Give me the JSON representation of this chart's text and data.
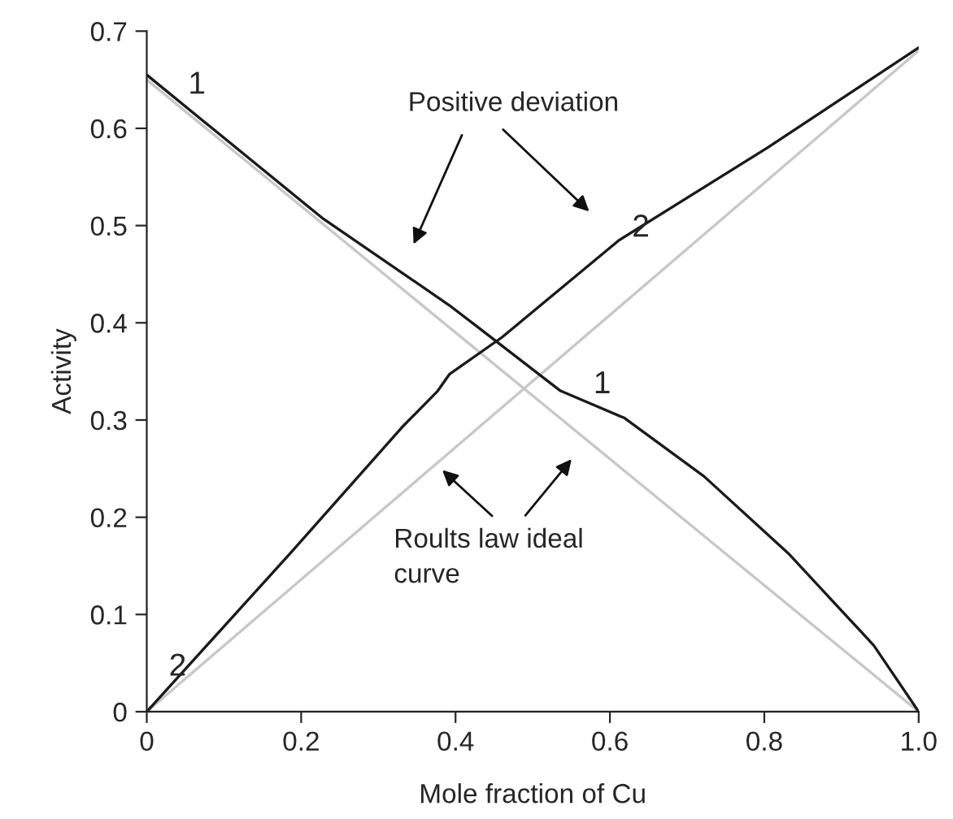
{
  "chart_data": {
    "type": "line",
    "xlabel": "Mole fraction of Cu",
    "ylabel": "Activity",
    "xlim": [
      0,
      1.0
    ],
    "ylim": [
      0,
      0.7
    ],
    "xticks": [
      0,
      0.2,
      0.4,
      0.6,
      0.8,
      {
        "value": 1.0,
        "label": "1.0"
      }
    ],
    "yticks": [
      0,
      0.1,
      0.2,
      0.3,
      0.4,
      0.5,
      0.6,
      0.7
    ],
    "grid": false,
    "marker": "none",
    "line_style": "solid",
    "series": [
      {
        "color": "#c8c8c8",
        "x": [
          0,
          1.0
        ],
        "values": [
          0.65,
          0
        ]
      },
      {
        "color": "#c8c8c8",
        "x": [
          0,
          1.0
        ],
        "values": [
          0,
          0.68
        ]
      },
      {
        "color": "#1a1a1a",
        "x": [
          0,
          0.227,
          0.392,
          0.433,
          0.536,
          0.619,
          0.722,
          0.831,
          0.928,
          0.942,
          1.0
        ],
        "values": [
          0.655,
          0.508,
          0.418,
          0.393,
          0.33,
          0.302,
          0.242,
          0.163,
          0.08,
          0.068,
          0
        ]
      },
      {
        "color": "#1a1a1a",
        "x": [
          0,
          0.186,
          0.33,
          0.377,
          0.392,
          0.46,
          0.612,
          0.804,
          1.0
        ],
        "values": [
          0,
          0.163,
          0.292,
          0.33,
          0.347,
          0.385,
          0.485,
          0.58,
          0.683
        ]
      }
    ],
    "annotations": [
      "1",
      "1",
      "2",
      "2",
      "Positive deviation",
      "Roults law ideal\ncurve"
    ]
  }
}
